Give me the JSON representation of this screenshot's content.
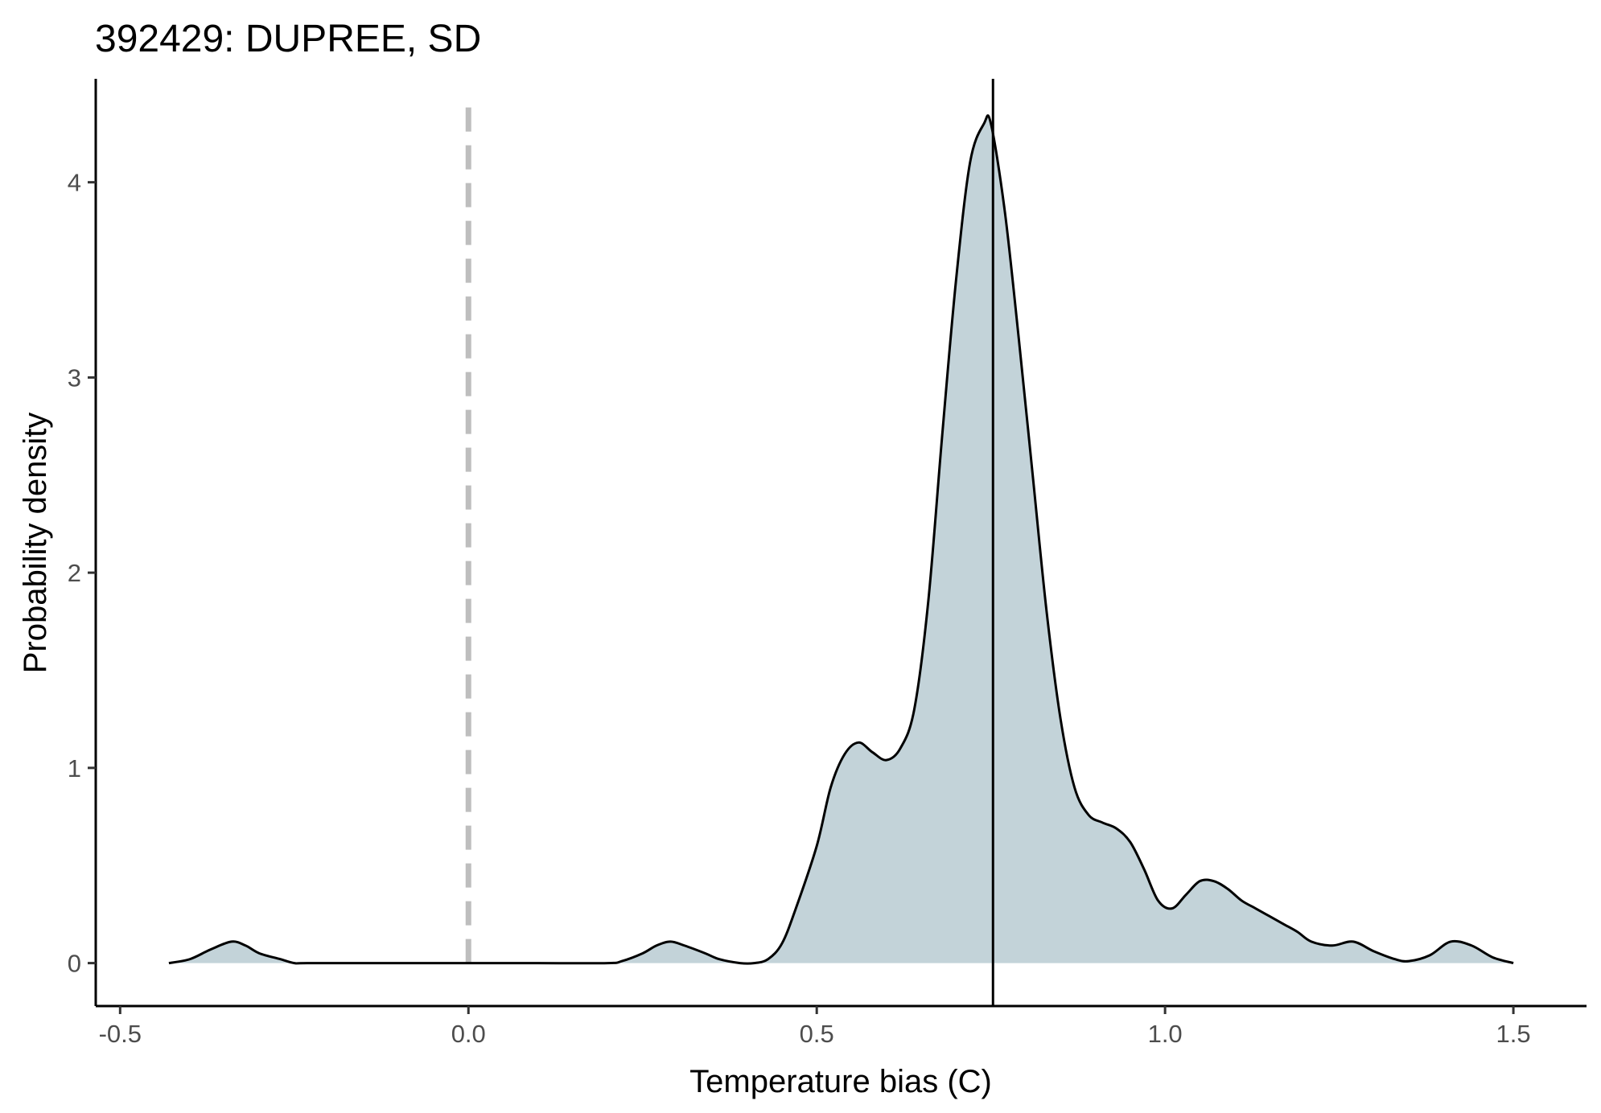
{
  "chart_data": {
    "type": "area",
    "title": "392429: DUPREE, SD",
    "xlabel": "Temperature bias (C)",
    "ylabel": "Probability density",
    "xlim": [
      -0.535,
      1.605
    ],
    "ylim": [
      -0.22,
      4.53
    ],
    "xticks": [
      -0.5,
      0.0,
      0.5,
      1.0,
      1.5
    ],
    "xtick_labels": [
      "-0.5",
      "0.0",
      "0.5",
      "1.0",
      "1.5"
    ],
    "yticks": [
      0,
      1,
      2,
      3,
      4
    ],
    "ytick_labels": [
      "0",
      "1",
      "2",
      "3",
      "4"
    ],
    "grid": false,
    "fill_color": "#c3d3d9",
    "line_color": "#000000",
    "reference_line": {
      "x": 0.0,
      "style": "dashed",
      "color": "#bebebe"
    },
    "estimate_line": {
      "x": 0.753,
      "style": "solid",
      "color": "#000000"
    },
    "density": {
      "x": [
        -0.43,
        -0.4,
        -0.37,
        -0.34,
        -0.32,
        -0.3,
        -0.27,
        -0.25,
        -0.23,
        -0.1,
        0.0,
        0.1,
        0.2,
        0.22,
        0.25,
        0.27,
        0.29,
        0.31,
        0.34,
        0.36,
        0.39,
        0.41,
        0.43,
        0.45,
        0.47,
        0.5,
        0.52,
        0.54,
        0.56,
        0.58,
        0.6,
        0.62,
        0.64,
        0.66,
        0.68,
        0.7,
        0.72,
        0.74,
        0.75,
        0.77,
        0.79,
        0.81,
        0.83,
        0.85,
        0.87,
        0.89,
        0.91,
        0.93,
        0.95,
        0.97,
        0.99,
        1.01,
        1.03,
        1.05,
        1.07,
        1.09,
        1.11,
        1.13,
        1.15,
        1.17,
        1.19,
        1.21,
        1.24,
        1.27,
        1.3,
        1.33,
        1.35,
        1.38,
        1.41,
        1.44,
        1.47,
        1.5
      ],
      "y": [
        0.0,
        0.02,
        0.07,
        0.11,
        0.09,
        0.05,
        0.02,
        0.0,
        0.0,
        0.0,
        0.0,
        0.0,
        0.0,
        0.01,
        0.05,
        0.09,
        0.11,
        0.09,
        0.05,
        0.02,
        0.0,
        0.0,
        0.02,
        0.1,
        0.28,
        0.6,
        0.9,
        1.07,
        1.13,
        1.08,
        1.04,
        1.1,
        1.3,
        1.85,
        2.7,
        3.5,
        4.1,
        4.3,
        4.3,
        3.85,
        3.2,
        2.5,
        1.8,
        1.25,
        0.9,
        0.76,
        0.72,
        0.69,
        0.62,
        0.48,
        0.32,
        0.28,
        0.35,
        0.42,
        0.42,
        0.38,
        0.32,
        0.28,
        0.24,
        0.2,
        0.16,
        0.11,
        0.09,
        0.11,
        0.06,
        0.02,
        0.01,
        0.04,
        0.11,
        0.09,
        0.03,
        0.0
      ]
    }
  }
}
